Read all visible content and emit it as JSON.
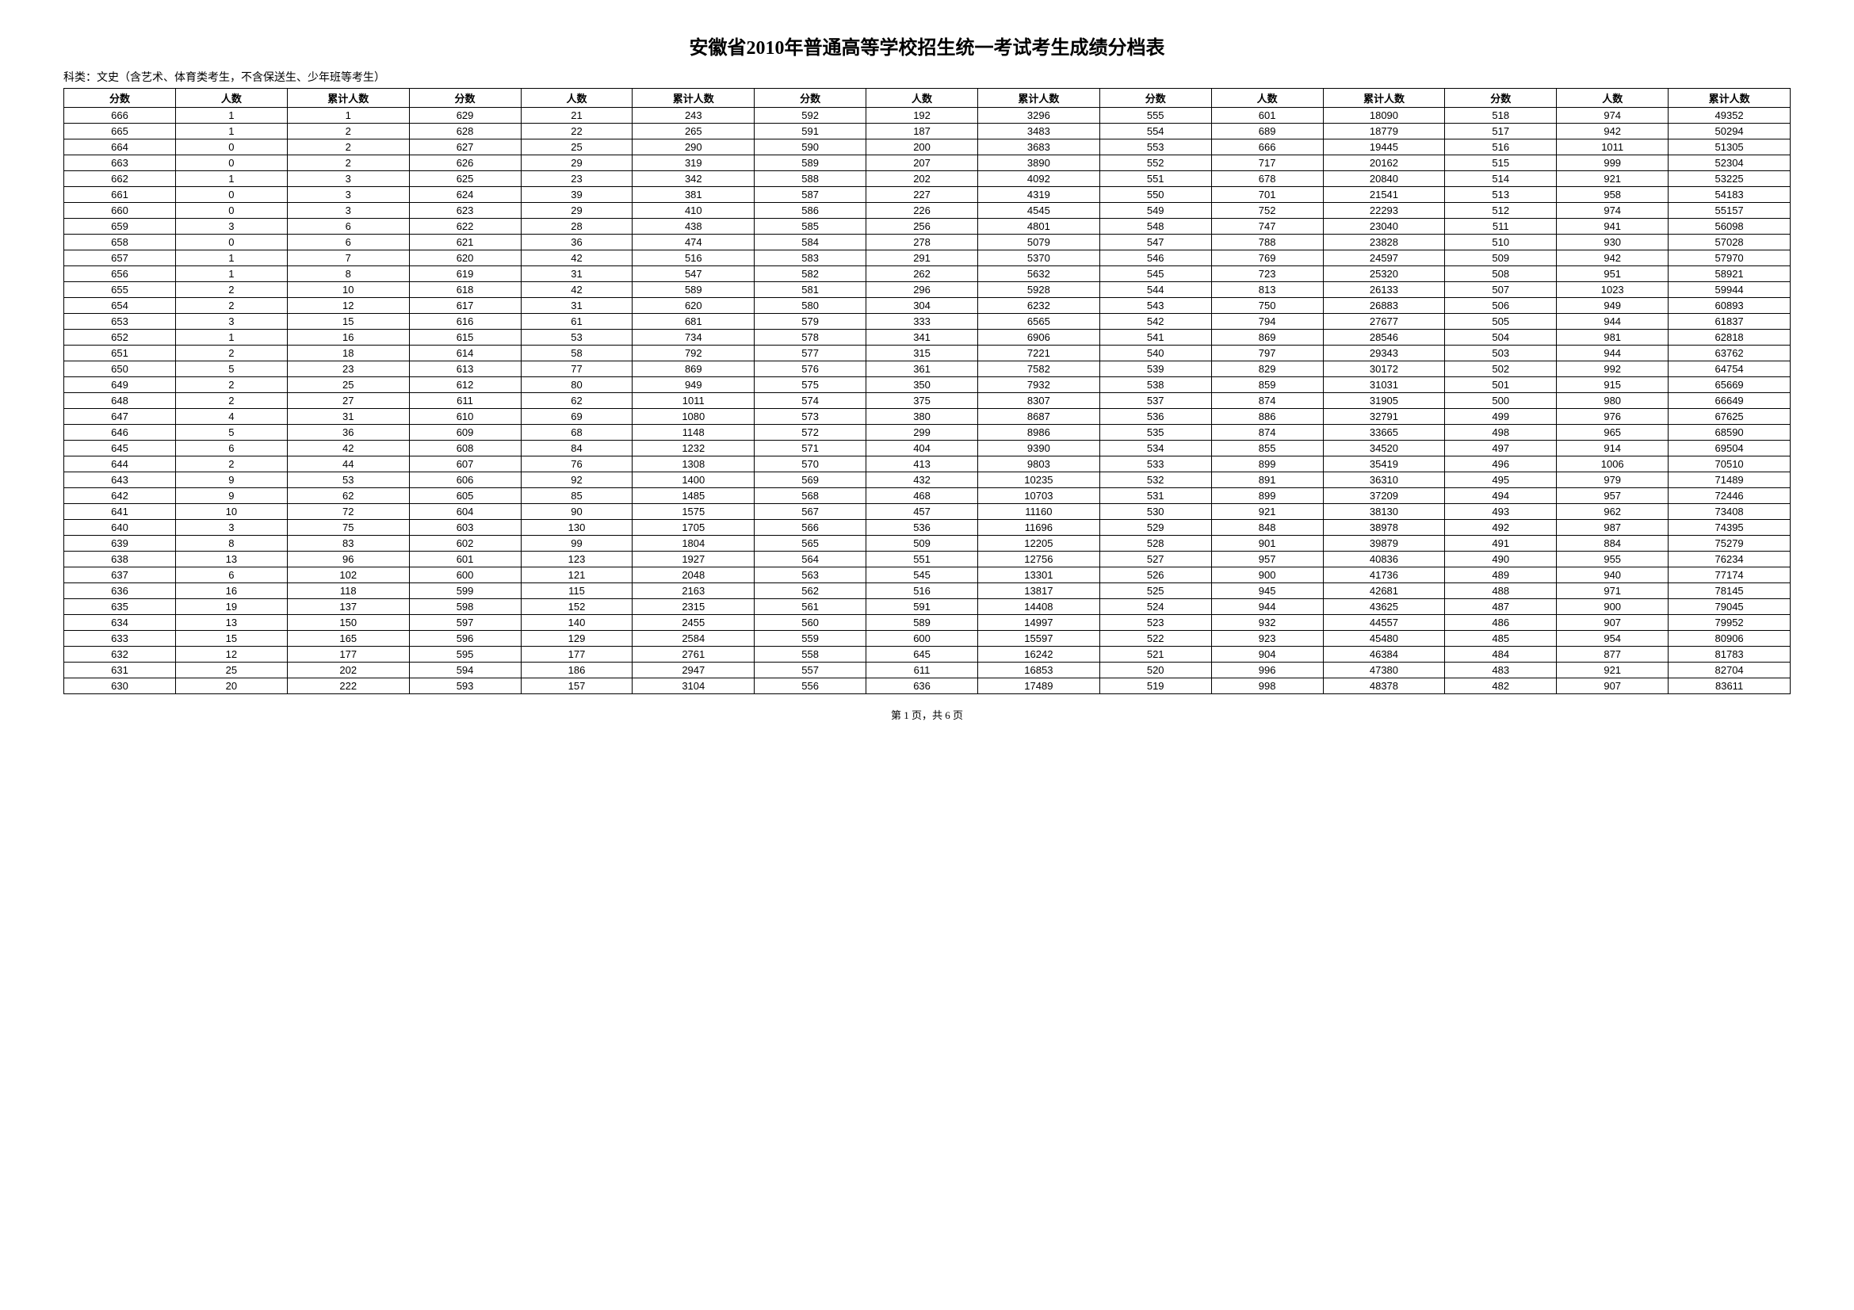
{
  "title": "安徽省2010年普通高等学校招生统一考试考生成绩分档表",
  "subtitle": "科类：文史（含艺术、体育类考生，不含保送生、少年班等考生）",
  "headers": {
    "score": "分数",
    "count": "人数",
    "cumulative": "累计人数"
  },
  "footer": "第 1 页，共 6 页",
  "columns": [
    [
      {
        "score": 666,
        "count": 1,
        "cumul": 1
      },
      {
        "score": 665,
        "count": 1,
        "cumul": 2
      },
      {
        "score": 664,
        "count": 0,
        "cumul": 2
      },
      {
        "score": 663,
        "count": 0,
        "cumul": 2
      },
      {
        "score": 662,
        "count": 1,
        "cumul": 3
      },
      {
        "score": 661,
        "count": 0,
        "cumul": 3
      },
      {
        "score": 660,
        "count": 0,
        "cumul": 3
      },
      {
        "score": 659,
        "count": 3,
        "cumul": 6
      },
      {
        "score": 658,
        "count": 0,
        "cumul": 6
      },
      {
        "score": 657,
        "count": 1,
        "cumul": 7
      },
      {
        "score": 656,
        "count": 1,
        "cumul": 8
      },
      {
        "score": 655,
        "count": 2,
        "cumul": 10
      },
      {
        "score": 654,
        "count": 2,
        "cumul": 12
      },
      {
        "score": 653,
        "count": 3,
        "cumul": 15
      },
      {
        "score": 652,
        "count": 1,
        "cumul": 16
      },
      {
        "score": 651,
        "count": 2,
        "cumul": 18
      },
      {
        "score": 650,
        "count": 5,
        "cumul": 23
      },
      {
        "score": 649,
        "count": 2,
        "cumul": 25
      },
      {
        "score": 648,
        "count": 2,
        "cumul": 27
      },
      {
        "score": 647,
        "count": 4,
        "cumul": 31
      },
      {
        "score": 646,
        "count": 5,
        "cumul": 36
      },
      {
        "score": 645,
        "count": 6,
        "cumul": 42
      },
      {
        "score": 644,
        "count": 2,
        "cumul": 44
      },
      {
        "score": 643,
        "count": 9,
        "cumul": 53
      },
      {
        "score": 642,
        "count": 9,
        "cumul": 62
      },
      {
        "score": 641,
        "count": 10,
        "cumul": 72
      },
      {
        "score": 640,
        "count": 3,
        "cumul": 75
      },
      {
        "score": 639,
        "count": 8,
        "cumul": 83
      },
      {
        "score": 638,
        "count": 13,
        "cumul": 96
      },
      {
        "score": 637,
        "count": 6,
        "cumul": 102
      },
      {
        "score": 636,
        "count": 16,
        "cumul": 118
      },
      {
        "score": 635,
        "count": 19,
        "cumul": 137
      },
      {
        "score": 634,
        "count": 13,
        "cumul": 150
      },
      {
        "score": 633,
        "count": 15,
        "cumul": 165
      },
      {
        "score": 632,
        "count": 12,
        "cumul": 177
      },
      {
        "score": 631,
        "count": 25,
        "cumul": 202
      },
      {
        "score": 630,
        "count": 20,
        "cumul": 222
      }
    ],
    [
      {
        "score": 629,
        "count": 21,
        "cumul": 243
      },
      {
        "score": 628,
        "count": 22,
        "cumul": 265
      },
      {
        "score": 627,
        "count": 25,
        "cumul": 290
      },
      {
        "score": 626,
        "count": 29,
        "cumul": 319
      },
      {
        "score": 625,
        "count": 23,
        "cumul": 342
      },
      {
        "score": 624,
        "count": 39,
        "cumul": 381
      },
      {
        "score": 623,
        "count": 29,
        "cumul": 410
      },
      {
        "score": 622,
        "count": 28,
        "cumul": 438
      },
      {
        "score": 621,
        "count": 36,
        "cumul": 474
      },
      {
        "score": 620,
        "count": 42,
        "cumul": 516
      },
      {
        "score": 619,
        "count": 31,
        "cumul": 547
      },
      {
        "score": 618,
        "count": 42,
        "cumul": 589
      },
      {
        "score": 617,
        "count": 31,
        "cumul": 620
      },
      {
        "score": 616,
        "count": 61,
        "cumul": 681
      },
      {
        "score": 615,
        "count": 53,
        "cumul": 734
      },
      {
        "score": 614,
        "count": 58,
        "cumul": 792
      },
      {
        "score": 613,
        "count": 77,
        "cumul": 869
      },
      {
        "score": 612,
        "count": 80,
        "cumul": 949
      },
      {
        "score": 611,
        "count": 62,
        "cumul": 1011
      },
      {
        "score": 610,
        "count": 69,
        "cumul": 1080
      },
      {
        "score": 609,
        "count": 68,
        "cumul": 1148
      },
      {
        "score": 608,
        "count": 84,
        "cumul": 1232
      },
      {
        "score": 607,
        "count": 76,
        "cumul": 1308
      },
      {
        "score": 606,
        "count": 92,
        "cumul": 1400
      },
      {
        "score": 605,
        "count": 85,
        "cumul": 1485
      },
      {
        "score": 604,
        "count": 90,
        "cumul": 1575
      },
      {
        "score": 603,
        "count": 130,
        "cumul": 1705
      },
      {
        "score": 602,
        "count": 99,
        "cumul": 1804
      },
      {
        "score": 601,
        "count": 123,
        "cumul": 1927
      },
      {
        "score": 600,
        "count": 121,
        "cumul": 2048
      },
      {
        "score": 599,
        "count": 115,
        "cumul": 2163
      },
      {
        "score": 598,
        "count": 152,
        "cumul": 2315
      },
      {
        "score": 597,
        "count": 140,
        "cumul": 2455
      },
      {
        "score": 596,
        "count": 129,
        "cumul": 2584
      },
      {
        "score": 595,
        "count": 177,
        "cumul": 2761
      },
      {
        "score": 594,
        "count": 186,
        "cumul": 2947
      },
      {
        "score": 593,
        "count": 157,
        "cumul": 3104
      }
    ],
    [
      {
        "score": 592,
        "count": 192,
        "cumul": 3296
      },
      {
        "score": 591,
        "count": 187,
        "cumul": 3483
      },
      {
        "score": 590,
        "count": 200,
        "cumul": 3683
      },
      {
        "score": 589,
        "count": 207,
        "cumul": 3890
      },
      {
        "score": 588,
        "count": 202,
        "cumul": 4092
      },
      {
        "score": 587,
        "count": 227,
        "cumul": 4319
      },
      {
        "score": 586,
        "count": 226,
        "cumul": 4545
      },
      {
        "score": 585,
        "count": 256,
        "cumul": 4801
      },
      {
        "score": 584,
        "count": 278,
        "cumul": 5079
      },
      {
        "score": 583,
        "count": 291,
        "cumul": 5370
      },
      {
        "score": 582,
        "count": 262,
        "cumul": 5632
      },
      {
        "score": 581,
        "count": 296,
        "cumul": 5928
      },
      {
        "score": 580,
        "count": 304,
        "cumul": 6232
      },
      {
        "score": 579,
        "count": 333,
        "cumul": 6565
      },
      {
        "score": 578,
        "count": 341,
        "cumul": 6906
      },
      {
        "score": 577,
        "count": 315,
        "cumul": 7221
      },
      {
        "score": 576,
        "count": 361,
        "cumul": 7582
      },
      {
        "score": 575,
        "count": 350,
        "cumul": 7932
      },
      {
        "score": 574,
        "count": 375,
        "cumul": 8307
      },
      {
        "score": 573,
        "count": 380,
        "cumul": 8687
      },
      {
        "score": 572,
        "count": 299,
        "cumul": 8986
      },
      {
        "score": 571,
        "count": 404,
        "cumul": 9390
      },
      {
        "score": 570,
        "count": 413,
        "cumul": 9803
      },
      {
        "score": 569,
        "count": 432,
        "cumul": 10235
      },
      {
        "score": 568,
        "count": 468,
        "cumul": 10703
      },
      {
        "score": 567,
        "count": 457,
        "cumul": 11160
      },
      {
        "score": 566,
        "count": 536,
        "cumul": 11696
      },
      {
        "score": 565,
        "count": 509,
        "cumul": 12205
      },
      {
        "score": 564,
        "count": 551,
        "cumul": 12756
      },
      {
        "score": 563,
        "count": 545,
        "cumul": 13301
      },
      {
        "score": 562,
        "count": 516,
        "cumul": 13817
      },
      {
        "score": 561,
        "count": 591,
        "cumul": 14408
      },
      {
        "score": 560,
        "count": 589,
        "cumul": 14997
      },
      {
        "score": 559,
        "count": 600,
        "cumul": 15597
      },
      {
        "score": 558,
        "count": 645,
        "cumul": 16242
      },
      {
        "score": 557,
        "count": 611,
        "cumul": 16853
      },
      {
        "score": 556,
        "count": 636,
        "cumul": 17489
      }
    ],
    [
      {
        "score": 555,
        "count": 601,
        "cumul": 18090
      },
      {
        "score": 554,
        "count": 689,
        "cumul": 18779
      },
      {
        "score": 553,
        "count": 666,
        "cumul": 19445
      },
      {
        "score": 552,
        "count": 717,
        "cumul": 20162
      },
      {
        "score": 551,
        "count": 678,
        "cumul": 20840
      },
      {
        "score": 550,
        "count": 701,
        "cumul": 21541
      },
      {
        "score": 549,
        "count": 752,
        "cumul": 22293
      },
      {
        "score": 548,
        "count": 747,
        "cumul": 23040
      },
      {
        "score": 547,
        "count": 788,
        "cumul": 23828
      },
      {
        "score": 546,
        "count": 769,
        "cumul": 24597
      },
      {
        "score": 545,
        "count": 723,
        "cumul": 25320
      },
      {
        "score": 544,
        "count": 813,
        "cumul": 26133
      },
      {
        "score": 543,
        "count": 750,
        "cumul": 26883
      },
      {
        "score": 542,
        "count": 794,
        "cumul": 27677
      },
      {
        "score": 541,
        "count": 869,
        "cumul": 28546
      },
      {
        "score": 540,
        "count": 797,
        "cumul": 29343
      },
      {
        "score": 539,
        "count": 829,
        "cumul": 30172
      },
      {
        "score": 538,
        "count": 859,
        "cumul": 31031
      },
      {
        "score": 537,
        "count": 874,
        "cumul": 31905
      },
      {
        "score": 536,
        "count": 886,
        "cumul": 32791
      },
      {
        "score": 535,
        "count": 874,
        "cumul": 33665
      },
      {
        "score": 534,
        "count": 855,
        "cumul": 34520
      },
      {
        "score": 533,
        "count": 899,
        "cumul": 35419
      },
      {
        "score": 532,
        "count": 891,
        "cumul": 36310
      },
      {
        "score": 531,
        "count": 899,
        "cumul": 37209
      },
      {
        "score": 530,
        "count": 921,
        "cumul": 38130
      },
      {
        "score": 529,
        "count": 848,
        "cumul": 38978
      },
      {
        "score": 528,
        "count": 901,
        "cumul": 39879
      },
      {
        "score": 527,
        "count": 957,
        "cumul": 40836
      },
      {
        "score": 526,
        "count": 900,
        "cumul": 41736
      },
      {
        "score": 525,
        "count": 945,
        "cumul": 42681
      },
      {
        "score": 524,
        "count": 944,
        "cumul": 43625
      },
      {
        "score": 523,
        "count": 932,
        "cumul": 44557
      },
      {
        "score": 522,
        "count": 923,
        "cumul": 45480
      },
      {
        "score": 521,
        "count": 904,
        "cumul": 46384
      },
      {
        "score": 520,
        "count": 996,
        "cumul": 47380
      },
      {
        "score": 519,
        "count": 998,
        "cumul": 48378
      }
    ],
    [
      {
        "score": 518,
        "count": 974,
        "cumul": 49352
      },
      {
        "score": 517,
        "count": 942,
        "cumul": 50294
      },
      {
        "score": 516,
        "count": 1011,
        "cumul": 51305
      },
      {
        "score": 515,
        "count": 999,
        "cumul": 52304
      },
      {
        "score": 514,
        "count": 921,
        "cumul": 53225
      },
      {
        "score": 513,
        "count": 958,
        "cumul": 54183
      },
      {
        "score": 512,
        "count": 974,
        "cumul": 55157
      },
      {
        "score": 511,
        "count": 941,
        "cumul": 56098
      },
      {
        "score": 510,
        "count": 930,
        "cumul": 57028
      },
      {
        "score": 509,
        "count": 942,
        "cumul": 57970
      },
      {
        "score": 508,
        "count": 951,
        "cumul": 58921
      },
      {
        "score": 507,
        "count": 1023,
        "cumul": 59944
      },
      {
        "score": 506,
        "count": 949,
        "cumul": 60893
      },
      {
        "score": 505,
        "count": 944,
        "cumul": 61837
      },
      {
        "score": 504,
        "count": 981,
        "cumul": 62818
      },
      {
        "score": 503,
        "count": 944,
        "cumul": 63762
      },
      {
        "score": 502,
        "count": 992,
        "cumul": 64754
      },
      {
        "score": 501,
        "count": 915,
        "cumul": 65669
      },
      {
        "score": 500,
        "count": 980,
        "cumul": 66649
      },
      {
        "score": 499,
        "count": 976,
        "cumul": 67625
      },
      {
        "score": 498,
        "count": 965,
        "cumul": 68590
      },
      {
        "score": 497,
        "count": 914,
        "cumul": 69504
      },
      {
        "score": 496,
        "count": 1006,
        "cumul": 70510
      },
      {
        "score": 495,
        "count": 979,
        "cumul": 71489
      },
      {
        "score": 494,
        "count": 957,
        "cumul": 72446
      },
      {
        "score": 493,
        "count": 962,
        "cumul": 73408
      },
      {
        "score": 492,
        "count": 987,
        "cumul": 74395
      },
      {
        "score": 491,
        "count": 884,
        "cumul": 75279
      },
      {
        "score": 490,
        "count": 955,
        "cumul": 76234
      },
      {
        "score": 489,
        "count": 940,
        "cumul": 77174
      },
      {
        "score": 488,
        "count": 971,
        "cumul": 78145
      },
      {
        "score": 487,
        "count": 900,
        "cumul": 79045
      },
      {
        "score": 486,
        "count": 907,
        "cumul": 79952
      },
      {
        "score": 485,
        "count": 954,
        "cumul": 80906
      },
      {
        "score": 484,
        "count": 877,
        "cumul": 81783
      },
      {
        "score": 483,
        "count": 921,
        "cumul": 82704
      },
      {
        "score": 482,
        "count": 907,
        "cumul": 83611
      }
    ]
  ]
}
